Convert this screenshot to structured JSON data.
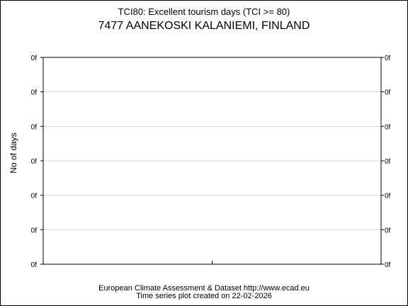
{
  "chart_data": {
    "type": "line",
    "title": "TCI80: Excellent tourism days (TCI >= 80)",
    "subtitle": "7477 AANEKOSKI KALANIEMI, FINLAND",
    "xlabel": "",
    "ylabel": "No of days",
    "y_tick_labels": [
      "0f",
      "0f",
      "0f",
      "0f",
      "0f",
      "0f",
      "0f"
    ],
    "x_tick_labels": [],
    "grid": true,
    "series": []
  },
  "footer": {
    "line1": "European Climate Assessment & Dataset  http://www.ecad.eu",
    "line2": "Time series plot created on 22-02-2026"
  }
}
